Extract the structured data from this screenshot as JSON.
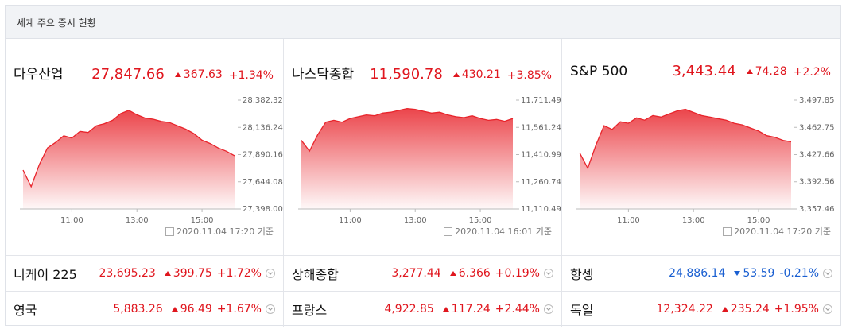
{
  "header": {
    "title": "세계 주요 증시 현황"
  },
  "colors": {
    "up": "#e0161e",
    "down": "#1a5fd1",
    "line": "#e8242b"
  },
  "panels": [
    {
      "name": "다우산업",
      "price": "27,847.66",
      "change": "367.63",
      "percent": "+1.34%",
      "direction": "up",
      "timestamp": "2020.11.04 17:20 기준",
      "chart": {
        "type": "area",
        "x": [
          9.5,
          9.75,
          10,
          10.25,
          10.5,
          10.75,
          11,
          11.25,
          11.5,
          11.75,
          12,
          12.25,
          12.5,
          12.75,
          13,
          13.25,
          13.5,
          13.75,
          14,
          14.25,
          14.5,
          14.75,
          15,
          15.25,
          15.5,
          15.75,
          16
        ],
        "values": [
          27750,
          27600,
          27800,
          27950,
          28000,
          28060,
          28040,
          28100,
          28090,
          28150,
          28170,
          28200,
          28260,
          28290,
          28250,
          28220,
          28210,
          28190,
          28180,
          28150,
          28120,
          28080,
          28020,
          27990,
          27950,
          27920,
          27880
        ],
        "xlim": [
          9.5,
          16
        ],
        "xticks": [
          {
            "value": 11,
            "label": "11:00"
          },
          {
            "value": 13,
            "label": "13:00"
          },
          {
            "value": 15,
            "label": "15:00"
          }
        ],
        "ylim": [
          27398,
          28382.32
        ],
        "yticks": [
          {
            "value": 28382.32,
            "label": "28,382.32"
          },
          {
            "value": 28136.24,
            "label": "28,136.24"
          },
          {
            "value": 27890.16,
            "label": "27,890.16"
          },
          {
            "value": 27644.08,
            "label": "27,644.08"
          },
          {
            "value": 27398,
            "label": "27,398.00"
          }
        ]
      }
    },
    {
      "name": "나스닥종합",
      "price": "11,590.78",
      "change": "430.21",
      "percent": "+3.85%",
      "direction": "up",
      "timestamp": "2020.11.04 16:01 기준",
      "chart": {
        "type": "area",
        "x": [
          9.5,
          9.75,
          10,
          10.25,
          10.5,
          10.75,
          11,
          11.25,
          11.5,
          11.75,
          12,
          12.25,
          12.5,
          12.75,
          13,
          13.25,
          13.5,
          13.75,
          14,
          14.25,
          14.5,
          14.75,
          15,
          15.25,
          15.5,
          15.75,
          16
        ],
        "values": [
          11490,
          11430,
          11520,
          11590,
          11600,
          11590,
          11610,
          11620,
          11630,
          11625,
          11640,
          11645,
          11655,
          11665,
          11660,
          11650,
          11640,
          11645,
          11630,
          11620,
          11615,
          11625,
          11610,
          11600,
          11605,
          11595,
          11610
        ],
        "xlim": [
          9.5,
          16
        ],
        "xticks": [
          {
            "value": 11,
            "label": "11:00"
          },
          {
            "value": 13,
            "label": "13:00"
          },
          {
            "value": 15,
            "label": "15:00"
          }
        ],
        "ylim": [
          11110.49,
          11711.49
        ],
        "yticks": [
          {
            "value": 11711.49,
            "label": "11,711.49"
          },
          {
            "value": 11561.24,
            "label": "11,561.24"
          },
          {
            "value": 11410.99,
            "label": "11,410.99"
          },
          {
            "value": 11260.74,
            "label": "11,260.74"
          },
          {
            "value": 11110.49,
            "label": "11,110.49"
          }
        ]
      }
    },
    {
      "name": "S&P 500",
      "price": "3,443.44",
      "change": "74.28",
      "percent": "+2.2%",
      "direction": "up",
      "timestamp": "2020.11.04 17:20 기준",
      "chart": {
        "type": "area",
        "x": [
          9.5,
          9.75,
          10,
          10.25,
          10.5,
          10.75,
          11,
          11.25,
          11.5,
          11.75,
          12,
          12.25,
          12.5,
          12.75,
          13,
          13.25,
          13.5,
          13.75,
          14,
          14.25,
          14.5,
          14.75,
          15,
          15.25,
          15.5,
          15.75,
          16
        ],
        "values": [
          3430,
          3410,
          3440,
          3465,
          3460,
          3470,
          3468,
          3475,
          3472,
          3478,
          3476,
          3480,
          3484,
          3486,
          3482,
          3478,
          3476,
          3474,
          3472,
          3468,
          3466,
          3462,
          3458,
          3452,
          3450,
          3446,
          3444
        ],
        "xlim": [
          9.5,
          16
        ],
        "xticks": [
          {
            "value": 11,
            "label": "11:00"
          },
          {
            "value": 13,
            "label": "13:00"
          },
          {
            "value": 15,
            "label": "15:00"
          }
        ],
        "ylim": [
          3357.46,
          3497.85
        ],
        "yticks": [
          {
            "value": 3497.85,
            "label": "3,497.85"
          },
          {
            "value": 3462.75,
            "label": "3,462.75"
          },
          {
            "value": 3427.66,
            "label": "3,427.66"
          },
          {
            "value": 3392.56,
            "label": "3,392.56"
          },
          {
            "value": 3357.46,
            "label": "3,357.46"
          }
        ]
      }
    }
  ],
  "rows": [
    [
      {
        "name": "니케이 225",
        "price": "23,695.23",
        "change": "399.75",
        "percent": "+1.72%",
        "direction": "up"
      },
      {
        "name": "상해종합",
        "price": "3,277.44",
        "change": "6.366",
        "percent": "+0.19%",
        "direction": "up"
      },
      {
        "name": "항셍",
        "price": "24,886.14",
        "change": "53.59",
        "percent": "-0.21%",
        "direction": "down"
      }
    ],
    [
      {
        "name": "영국",
        "price": "5,883.26",
        "change": "96.49",
        "percent": "+1.67%",
        "direction": "up"
      },
      {
        "name": "프랑스",
        "price": "4,922.85",
        "change": "117.24",
        "percent": "+2.44%",
        "direction": "up"
      },
      {
        "name": "독일",
        "price": "12,324.22",
        "change": "235.24",
        "percent": "+1.95%",
        "direction": "up"
      }
    ]
  ]
}
